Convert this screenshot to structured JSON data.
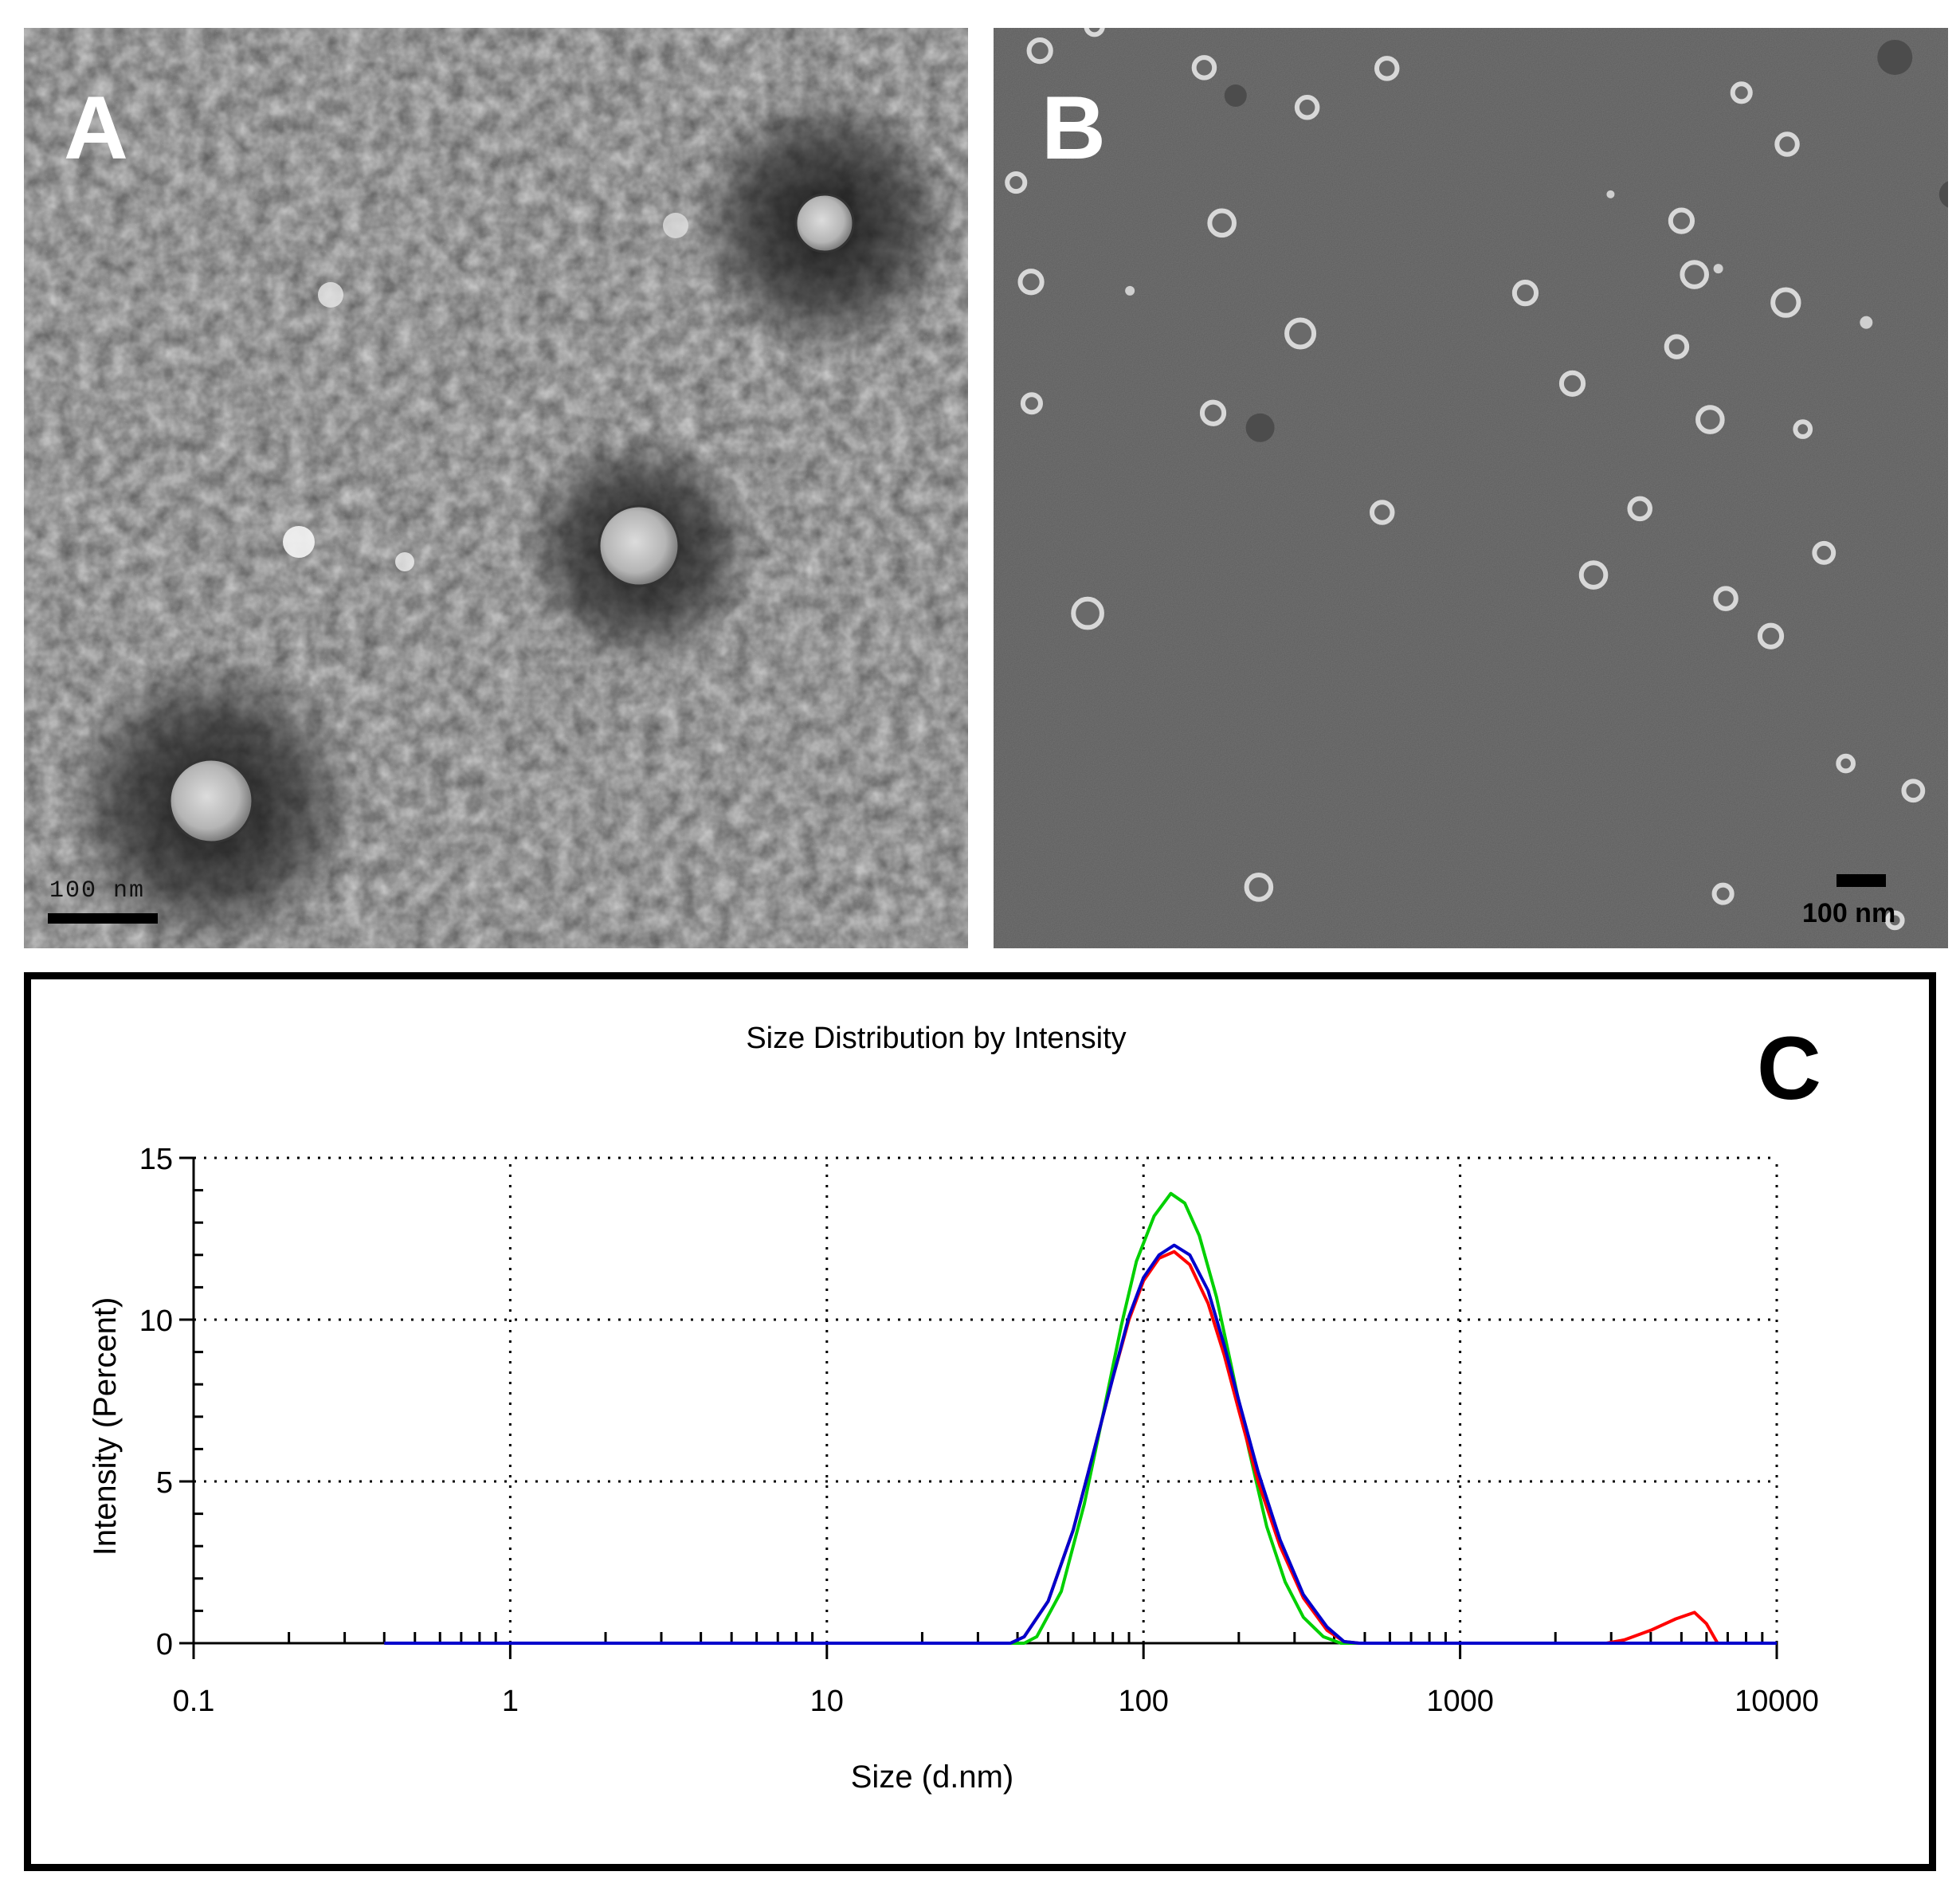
{
  "panels": {
    "a": {
      "letter": "A",
      "scale_bar_label": "100  nm"
    },
    "b": {
      "letter": "B",
      "scale_bar_label": "100 nm"
    },
    "c": {
      "letter": "C"
    }
  },
  "colors": {
    "red": "#ff0000",
    "green": "#00d000",
    "blue": "#0000cc",
    "grid": "#000000"
  },
  "chart_data": {
    "type": "line",
    "title": "Size Distribution by Intensity",
    "xlabel": "Size (d.nm)",
    "ylabel": "Intensity (Percent)",
    "x_scale": "log",
    "xlim": [
      0.1,
      10000
    ],
    "ylim": [
      0,
      15
    ],
    "x_ticks": [
      0.1,
      1,
      10,
      100,
      1000,
      10000
    ],
    "x_tick_labels": [
      "0.1",
      "1",
      "10",
      "100",
      "1000",
      "10000"
    ],
    "y_ticks": [
      0,
      5,
      10,
      15
    ],
    "y_tick_labels": [
      "0",
      "5",
      "10",
      "15"
    ],
    "grid": "dotted",
    "series": [
      {
        "color": "red",
        "points": [
          [
            0.4,
            0
          ],
          [
            38,
            0
          ],
          [
            42,
            0.2
          ],
          [
            50,
            1.3
          ],
          [
            60,
            3.5
          ],
          [
            70,
            6.0
          ],
          [
            80,
            8.2
          ],
          [
            90,
            10.0
          ],
          [
            100,
            11.2
          ],
          [
            112,
            11.9
          ],
          [
            125,
            12.1
          ],
          [
            140,
            11.7
          ],
          [
            160,
            10.5
          ],
          [
            180,
            8.9
          ],
          [
            200,
            7.2
          ],
          [
            230,
            5.0
          ],
          [
            270,
            3.0
          ],
          [
            320,
            1.4
          ],
          [
            380,
            0.4
          ],
          [
            430,
            0.05
          ],
          [
            480,
            0
          ],
          [
            2900,
            0
          ],
          [
            3300,
            0.1
          ],
          [
            4000,
            0.4
          ],
          [
            4800,
            0.75
          ],
          [
            5500,
            0.95
          ],
          [
            6000,
            0.6
          ],
          [
            6500,
            0
          ],
          [
            10000,
            0
          ]
        ]
      },
      {
        "color": "green",
        "points": [
          [
            0.4,
            0
          ],
          [
            42,
            0
          ],
          [
            46,
            0.2
          ],
          [
            55,
            1.6
          ],
          [
            65,
            4.3
          ],
          [
            75,
            7.2
          ],
          [
            85,
            9.8
          ],
          [
            95,
            11.8
          ],
          [
            108,
            13.2
          ],
          [
            122,
            13.9
          ],
          [
            135,
            13.6
          ],
          [
            150,
            12.6
          ],
          [
            170,
            10.7
          ],
          [
            190,
            8.5
          ],
          [
            215,
            6.0
          ],
          [
            245,
            3.6
          ],
          [
            280,
            1.9
          ],
          [
            320,
            0.8
          ],
          [
            370,
            0.2
          ],
          [
            420,
            0
          ],
          [
            10000,
            0
          ]
        ]
      },
      {
        "color": "blue",
        "points": [
          [
            0.4,
            0
          ],
          [
            38,
            0
          ],
          [
            42,
            0.2
          ],
          [
            50,
            1.3
          ],
          [
            60,
            3.5
          ],
          [
            70,
            6.0
          ],
          [
            80,
            8.2
          ],
          [
            90,
            10.1
          ],
          [
            100,
            11.3
          ],
          [
            112,
            12.0
          ],
          [
            125,
            12.3
          ],
          [
            140,
            12.0
          ],
          [
            160,
            10.9
          ],
          [
            180,
            9.2
          ],
          [
            200,
            7.5
          ],
          [
            230,
            5.3
          ],
          [
            270,
            3.2
          ],
          [
            320,
            1.5
          ],
          [
            380,
            0.5
          ],
          [
            430,
            0.05
          ],
          [
            480,
            0
          ],
          [
            10000,
            0
          ]
        ]
      }
    ]
  }
}
